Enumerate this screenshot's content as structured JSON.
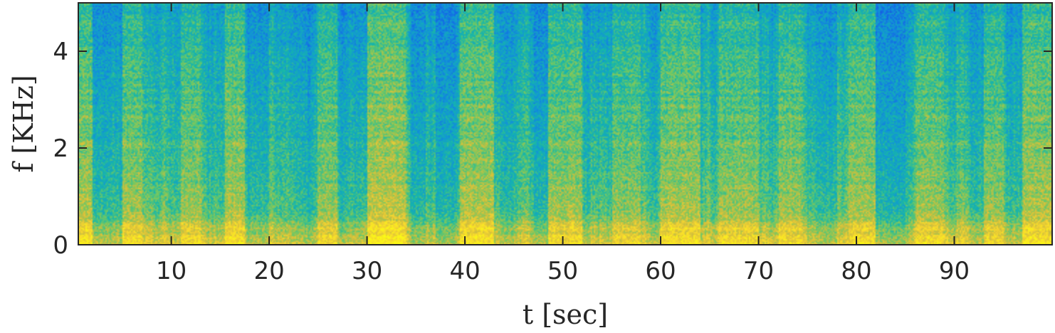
{
  "chart_data": {
    "type": "heatmap",
    "title": "",
    "xlabel": "t [sec]",
    "ylabel": "f [KHz]",
    "xlim": [
      0.5,
      100
    ],
    "ylim": [
      0,
      5
    ],
    "x_ticks": [
      10,
      20,
      30,
      40,
      50,
      60,
      70,
      80,
      90
    ],
    "x_tick_labels": [
      "10",
      "20",
      "30",
      "40",
      "50",
      "60",
      "70",
      "80",
      "90"
    ],
    "y_ticks": [
      0,
      2,
      4
    ],
    "y_tick_labels": [
      "0",
      "2",
      "4"
    ],
    "grid": false,
    "colormap": "parula",
    "colorbar": false,
    "colors": {
      "low": "#3d6cf0",
      "mid": "#25b4a8",
      "high": "#f3e632",
      "peak": "#fffa3a"
    },
    "features": {
      "loud_time_bands": [
        {
          "t": [
            0.5,
            4
          ],
          "level": 0.88
        },
        {
          "t": [
            5,
            7
          ],
          "level": 0.82
        },
        {
          "t": [
            11,
            13
          ],
          "level": 0.8
        },
        {
          "t": [
            15.5,
            17.5
          ],
          "level": 0.86
        },
        {
          "t": [
            25,
            27
          ],
          "level": 0.8
        },
        {
          "t": [
            30,
            34
          ],
          "level": 0.95
        },
        {
          "t": [
            39.5,
            43
          ],
          "level": 0.9
        },
        {
          "t": [
            48.5,
            52
          ],
          "level": 0.82
        },
        {
          "t": [
            55,
            58
          ],
          "level": 0.75
        },
        {
          "t": [
            60,
            64
          ],
          "level": 0.85
        },
        {
          "t": [
            66,
            70
          ],
          "level": 0.8
        },
        {
          "t": [
            72,
            74.5
          ],
          "level": 0.8
        },
        {
          "t": [
            79.5,
            82
          ],
          "level": 0.83
        },
        {
          "t": [
            86,
            89
          ],
          "level": 0.8
        },
        {
          "t": [
            93,
            95
          ],
          "level": 0.78
        },
        {
          "t": [
            97,
            100
          ],
          "level": 0.88
        }
      ],
      "quiet_time_bands": [
        {
          "t": [
            2,
            4
          ],
          "level": 0.3
        },
        {
          "t": [
            18,
            20
          ],
          "level": 0.32
        },
        {
          "t": [
            22.5,
            24
          ],
          "level": 0.35
        },
        {
          "t": [
            28.5,
            30
          ],
          "level": 0.35
        },
        {
          "t": [
            34.5,
            36
          ],
          "level": 0.25
        },
        {
          "t": [
            37,
            39
          ],
          "level": 0.25
        },
        {
          "t": [
            43.5,
            45
          ],
          "level": 0.32
        },
        {
          "t": [
            47,
            48.5
          ],
          "level": 0.25
        },
        {
          "t": [
            76,
            78
          ],
          "level": 0.32
        },
        {
          "t": [
            82,
            85
          ],
          "level": 0.22
        }
      ]
    }
  }
}
